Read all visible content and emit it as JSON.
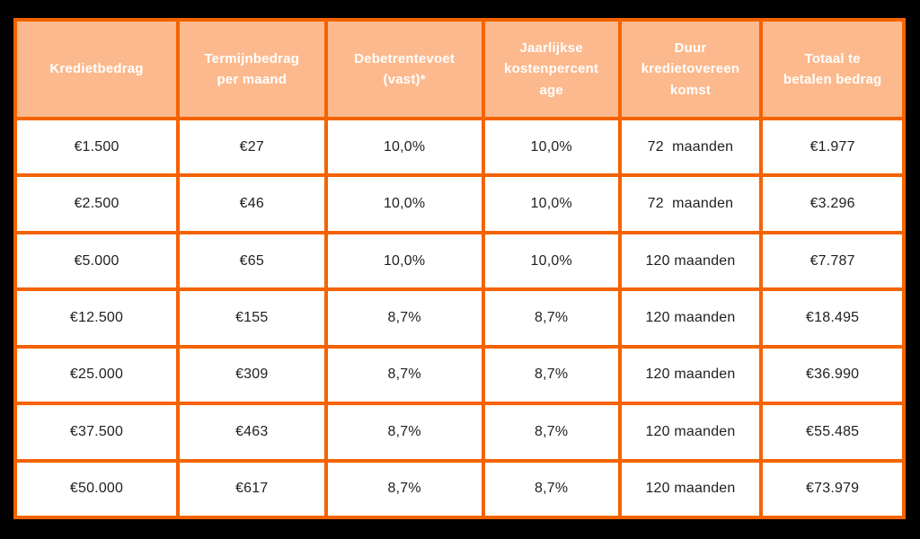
{
  "chart_data": {
    "type": "table",
    "title": "",
    "columns": [
      "Kredietbedrag",
      "Termijnbedrag\nper maand",
      "Debetrentevoet\n(vast)*",
      "Jaarlijkse\nkostenpercent\nage",
      "Duur\nkredietovereen\nkomst",
      "Totaal te\nbetalen bedrag"
    ],
    "rows": [
      [
        "€1.500",
        "€27",
        "10,0%",
        "10,0%",
        "72  maanden",
        "€1.977"
      ],
      [
        "€2.500",
        "€46",
        "10,0%",
        "10,0%",
        "72  maanden",
        "€3.296"
      ],
      [
        "€5.000",
        "€65",
        "10,0%",
        "10,0%",
        "120 maanden",
        "€7.787"
      ],
      [
        "€12.500",
        "€155",
        "8,7%",
        "8,7%",
        "120 maanden",
        "€18.495"
      ],
      [
        "€25.000",
        "€309",
        "8,7%",
        "8,7%",
        "120 maanden",
        "€36.990"
      ],
      [
        "€37.500",
        "€463",
        "8,7%",
        "8,7%",
        "120 maanden",
        "€55.485"
      ],
      [
        "€50.000",
        "€617",
        "8,7%",
        "8,7%",
        "120 maanden",
        "€73.979"
      ]
    ],
    "layout": {
      "grid": "on",
      "header_row": true,
      "rows_count": 7,
      "columns_count": 6
    }
  },
  "colors": {
    "bg": "#000000",
    "grid": "#F56300",
    "header_bg": "#FCB98D",
    "header_text": "#FFFFFF",
    "cell_bg": "#FFFFFF",
    "cell_text": "#1F1F1F"
  }
}
